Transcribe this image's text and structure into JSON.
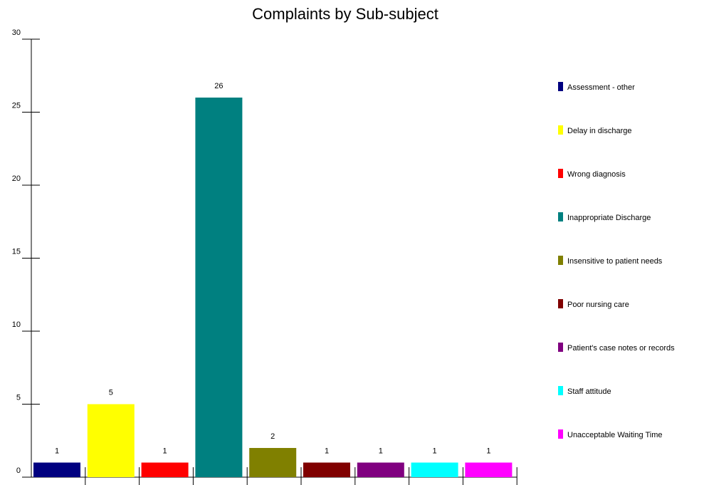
{
  "chart_data": {
    "type": "bar",
    "title": "Complaints by Sub-subject",
    "xlabel": "",
    "ylabel": "",
    "ylim": [
      0,
      30
    ],
    "yticks": [
      0,
      5,
      10,
      15,
      20,
      25,
      30
    ],
    "grid": false,
    "legend_position": "right",
    "categories": [
      "Assessment - other",
      "Delay in discharge",
      "Wrong diagnosis",
      "Inappropriate Discharge",
      "Insensitive to patient needs",
      "Poor nursing care",
      "Patient's case notes or records",
      "Staff attitude",
      "Unacceptable Waiting Time"
    ],
    "values": [
      1,
      5,
      1,
      26,
      2,
      1,
      1,
      1,
      1
    ],
    "data_labels": [
      "1",
      "5",
      "1",
      "26",
      "2",
      "1",
      "1",
      "1",
      "1"
    ],
    "colors": [
      "#000080",
      "#ffff00",
      "#ff0000",
      "#008080",
      "#808000",
      "#800000",
      "#800080",
      "#00ffff",
      "#ff00ff"
    ]
  }
}
